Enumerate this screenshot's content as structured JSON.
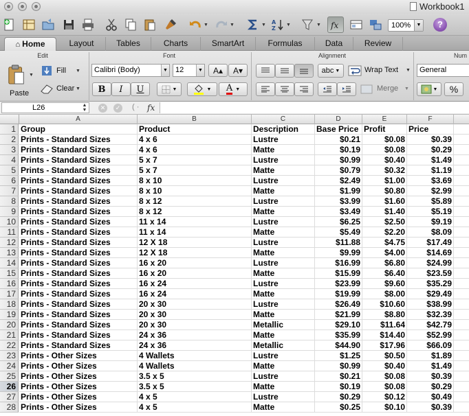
{
  "window": {
    "title": "Workbook1"
  },
  "toolbar": {
    "zoom": "100%",
    "help_label": "?"
  },
  "ribbon_tabs": [
    "Home",
    "Layout",
    "Tables",
    "Charts",
    "SmartArt",
    "Formulas",
    "Data",
    "Review"
  ],
  "ribbon": {
    "groups": {
      "edit": "Edit",
      "font": "Font",
      "alignment": "Alignment",
      "number": "Num"
    },
    "paste_label": "Paste",
    "fill_label": "Fill",
    "clear_label": "Clear",
    "font_name": "Calibri (Body)",
    "font_size": "12",
    "grow_font": "A▴",
    "shrink_font": "A▾",
    "bold": "B",
    "italic": "I",
    "underline": "U",
    "font_color_glyph": "A",
    "orientation_label": "abc",
    "wrap_text_label": "Wrap Text",
    "merge_label": "Merge",
    "number_format": "General",
    "percent": "%",
    "colors": {
      "highlight": "#ffff00",
      "font_color": "#e00000"
    }
  },
  "formula_bar": {
    "name_box": "L26",
    "fx": "fx",
    "formula": ""
  },
  "columns": [
    "A",
    "B",
    "C",
    "D",
    "E",
    "F"
  ],
  "selected_row": 26,
  "rows": [
    {
      "n": 1,
      "cells": [
        "Group",
        "Product",
        "Description",
        "Base Price",
        "Profit",
        "Price"
      ]
    },
    {
      "n": 2,
      "cells": [
        "Prints - Standard Sizes",
        "4 x 6",
        "Lustre",
        "$0.21",
        "$0.08",
        "$0.39"
      ]
    },
    {
      "n": 3,
      "cells": [
        "Prints - Standard Sizes",
        "4 x 6",
        "Matte",
        "$0.19",
        "$0.08",
        "$0.29"
      ]
    },
    {
      "n": 4,
      "cells": [
        "Prints - Standard Sizes",
        "5 x 7",
        "Lustre",
        "$0.99",
        "$0.40",
        "$1.49"
      ]
    },
    {
      "n": 5,
      "cells": [
        "Prints - Standard Sizes",
        "5 x 7",
        "Matte",
        "$0.79",
        "$0.32",
        "$1.19"
      ]
    },
    {
      "n": 6,
      "cells": [
        "Prints - Standard Sizes",
        "8 x 10",
        "Lustre",
        "$2.49",
        "$1.00",
        "$3.69"
      ]
    },
    {
      "n": 7,
      "cells": [
        "Prints - Standard Sizes",
        "8 x 10",
        "Matte",
        "$1.99",
        "$0.80",
        "$2.99"
      ]
    },
    {
      "n": 8,
      "cells": [
        "Prints - Standard Sizes",
        "8 x 12",
        "Lustre",
        "$3.99",
        "$1.60",
        "$5.89"
      ]
    },
    {
      "n": 9,
      "cells": [
        "Prints - Standard Sizes",
        "8 x 12",
        "Matte",
        "$3.49",
        "$1.40",
        "$5.19"
      ]
    },
    {
      "n": 10,
      "cells": [
        "Prints - Standard Sizes",
        "11 x 14",
        "Lustre",
        "$6.25",
        "$2.50",
        "$9.19"
      ]
    },
    {
      "n": 11,
      "cells": [
        "Prints - Standard Sizes",
        "11 x 14",
        "Matte",
        "$5.49",
        "$2.20",
        "$8.09"
      ]
    },
    {
      "n": 12,
      "cells": [
        "Prints - Standard Sizes",
        "12 X 18",
        "Lustre",
        "$11.88",
        "$4.75",
        "$17.49"
      ]
    },
    {
      "n": 13,
      "cells": [
        "Prints - Standard Sizes",
        "12 X 18",
        "Matte",
        "$9.99",
        "$4.00",
        "$14.69"
      ]
    },
    {
      "n": 14,
      "cells": [
        "Prints - Standard Sizes",
        "16 x 20",
        "Lustre",
        "$16.99",
        "$6.80",
        "$24.99"
      ]
    },
    {
      "n": 15,
      "cells": [
        "Prints - Standard Sizes",
        "16 x 20",
        "Matte",
        "$15.99",
        "$6.40",
        "$23.59"
      ]
    },
    {
      "n": 16,
      "cells": [
        "Prints - Standard Sizes",
        "16 x 24",
        "Lustre",
        "$23.99",
        "$9.60",
        "$35.29"
      ]
    },
    {
      "n": 17,
      "cells": [
        "Prints - Standard Sizes",
        "16 x 24",
        "Matte",
        "$19.99",
        "$8.00",
        "$29.49"
      ]
    },
    {
      "n": 18,
      "cells": [
        "Prints - Standard Sizes",
        "20 x 30",
        "Lustre",
        "$26.49",
        "$10.60",
        "$38.99"
      ]
    },
    {
      "n": 19,
      "cells": [
        "Prints - Standard Sizes",
        "20 x 30",
        "Matte",
        "$21.99",
        "$8.80",
        "$32.39"
      ]
    },
    {
      "n": 20,
      "cells": [
        "Prints - Standard Sizes",
        "20 x 30",
        "Metallic",
        "$29.10",
        "$11.64",
        "$42.79"
      ]
    },
    {
      "n": 21,
      "cells": [
        "Prints - Standard Sizes",
        "24 x 36",
        "Matte",
        "$35.99",
        "$14.40",
        "$52.99"
      ]
    },
    {
      "n": 22,
      "cells": [
        "Prints - Standard Sizes",
        "24 x 36",
        "Metallic",
        "$44.90",
        "$17.96",
        "$66.09"
      ]
    },
    {
      "n": 23,
      "cells": [
        "Prints - Other Sizes",
        "4 Wallets",
        "Lustre",
        "$1.25",
        "$0.50",
        "$1.89"
      ]
    },
    {
      "n": 24,
      "cells": [
        "Prints - Other Sizes",
        "4 Wallets",
        "Matte",
        "$0.99",
        "$0.40",
        "$1.49"
      ]
    },
    {
      "n": 25,
      "cells": [
        "Prints - Other Sizes",
        "3.5 x 5",
        "Lustre",
        "$0.21",
        "$0.08",
        "$0.39"
      ]
    },
    {
      "n": 26,
      "cells": [
        "Prints - Other Sizes",
        "3.5 x 5",
        "Matte",
        "$0.19",
        "$0.08",
        "$0.29"
      ]
    },
    {
      "n": 27,
      "cells": [
        "Prints - Other Sizes",
        "4 x 5",
        "Lustre",
        "$0.29",
        "$0.12",
        "$0.49"
      ]
    },
    {
      "n": 28,
      "cells": [
        "Prints - Other Sizes",
        "4 x 5",
        "Matte",
        "$0.25",
        "$0.10",
        "$0.39"
      ]
    }
  ]
}
